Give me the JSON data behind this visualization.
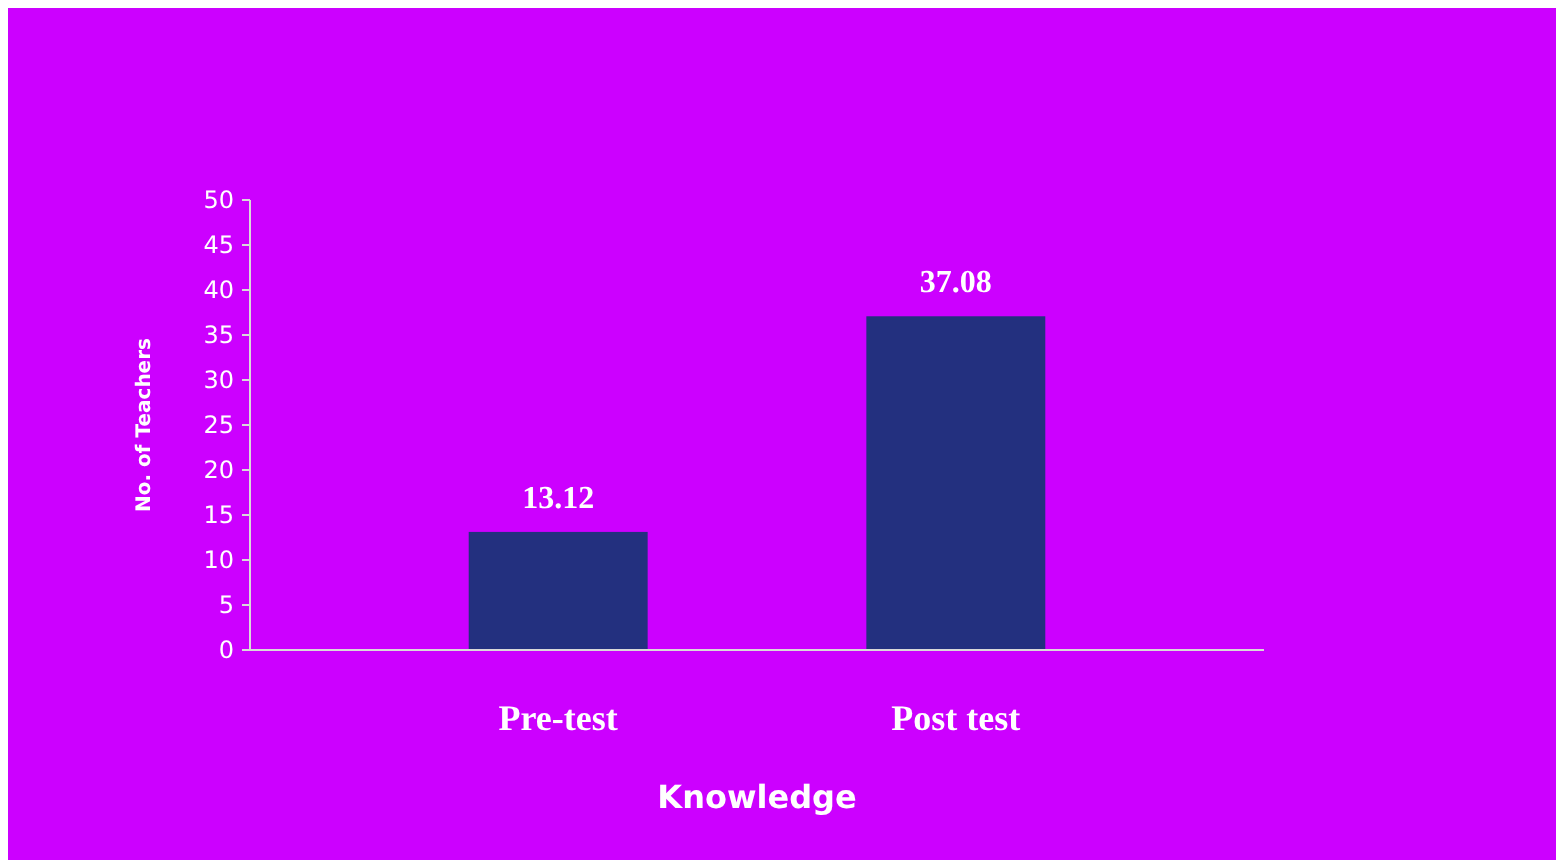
{
  "chart_data": {
    "type": "bar",
    "xlabel": "Knowledge",
    "ylabel": "No. of Teachers",
    "categories": [
      "Pre-test",
      "Post test"
    ],
    "values": [
      13.12,
      37.08
    ],
    "color": "#23307f",
    "ylim": [
      0,
      50
    ],
    "yticks": [
      0,
      5,
      10,
      15,
      20,
      25,
      30,
      35,
      40,
      45,
      50
    ],
    "data_labels": true,
    "grid": false
  }
}
